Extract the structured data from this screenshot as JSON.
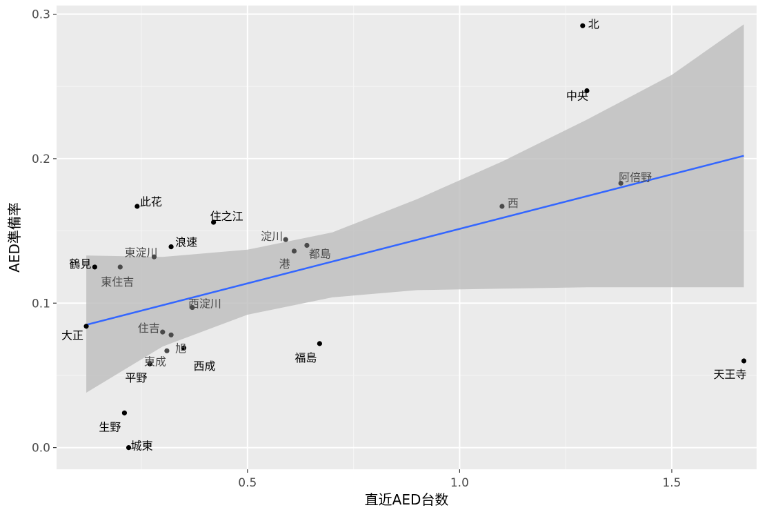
{
  "chart_data": {
    "type": "scatter",
    "title": "",
    "xlabel": "直近AED台数",
    "ylabel": "AED準備率",
    "xlim": [
      0.05,
      1.7
    ],
    "ylim": [
      -0.015,
      0.306
    ],
    "x_ticks": [
      0.5,
      1.0,
      1.5
    ],
    "x_tick_labels": [
      "0.5",
      "1.0",
      "1.5"
    ],
    "y_ticks": [
      0.0,
      0.1,
      0.2,
      0.3
    ],
    "y_tick_labels": [
      "0.0",
      "0.1",
      "0.2",
      "0.3"
    ],
    "grid": true,
    "background": "#ebebeb",
    "point_color": "#000000",
    "trend_line": {
      "method": "linear",
      "color": "#3366ff",
      "x": [
        0.12,
        1.67
      ],
      "y": [
        0.085,
        0.202
      ]
    },
    "confidence_band": {
      "color": "#bdbdbd",
      "x": [
        0.12,
        0.3,
        0.5,
        0.7,
        0.9,
        1.1,
        1.3,
        1.5,
        1.67
      ],
      "lower": [
        0.038,
        0.07,
        0.092,
        0.104,
        0.109,
        0.11,
        0.111,
        0.111,
        0.111
      ],
      "upper": [
        0.133,
        0.132,
        0.137,
        0.149,
        0.172,
        0.198,
        0.227,
        0.258,
        0.293
      ]
    },
    "points": [
      {
        "label": "北",
        "x": 1.29,
        "y": 0.292
      },
      {
        "label": "中央",
        "x": 1.3,
        "y": 0.247
      },
      {
        "label": "阿倍野",
        "x": 1.38,
        "y": 0.183
      },
      {
        "label": "西",
        "x": 1.1,
        "y": 0.167
      },
      {
        "label": "此花",
        "x": 0.24,
        "y": 0.167
      },
      {
        "label": "住之江",
        "x": 0.42,
        "y": 0.156
      },
      {
        "label": "淀川",
        "x": 0.59,
        "y": 0.144
      },
      {
        "label": "都島",
        "x": 0.64,
        "y": 0.14
      },
      {
        "label": "浪速",
        "x": 0.32,
        "y": 0.139
      },
      {
        "label": "港",
        "x": 0.61,
        "y": 0.136
      },
      {
        "label": "東淀川",
        "x": 0.28,
        "y": 0.132
      },
      {
        "label": "鶴見",
        "x": 0.14,
        "y": 0.125
      },
      {
        "label": "東住吉",
        "x": 0.2,
        "y": 0.125
      },
      {
        "label": "西淀川",
        "x": 0.37,
        "y": 0.097
      },
      {
        "label": "大正",
        "x": 0.12,
        "y": 0.084
      },
      {
        "label": "住吉",
        "x": 0.3,
        "y": 0.08
      },
      {
        "label": "旭",
        "x": 0.32,
        "y": 0.078
      },
      {
        "label": "福島",
        "x": 0.67,
        "y": 0.072
      },
      {
        "label": "西成",
        "x": 0.35,
        "y": 0.069
      },
      {
        "label": "東成",
        "x": 0.31,
        "y": 0.067
      },
      {
        "label": "平野",
        "x": 0.27,
        "y": 0.058
      },
      {
        "label": "天王寺",
        "x": 1.67,
        "y": 0.06
      },
      {
        "label": "生野",
        "x": 0.21,
        "y": 0.024
      },
      {
        "label": "城東",
        "x": 0.22,
        "y": 0.0
      }
    ]
  }
}
